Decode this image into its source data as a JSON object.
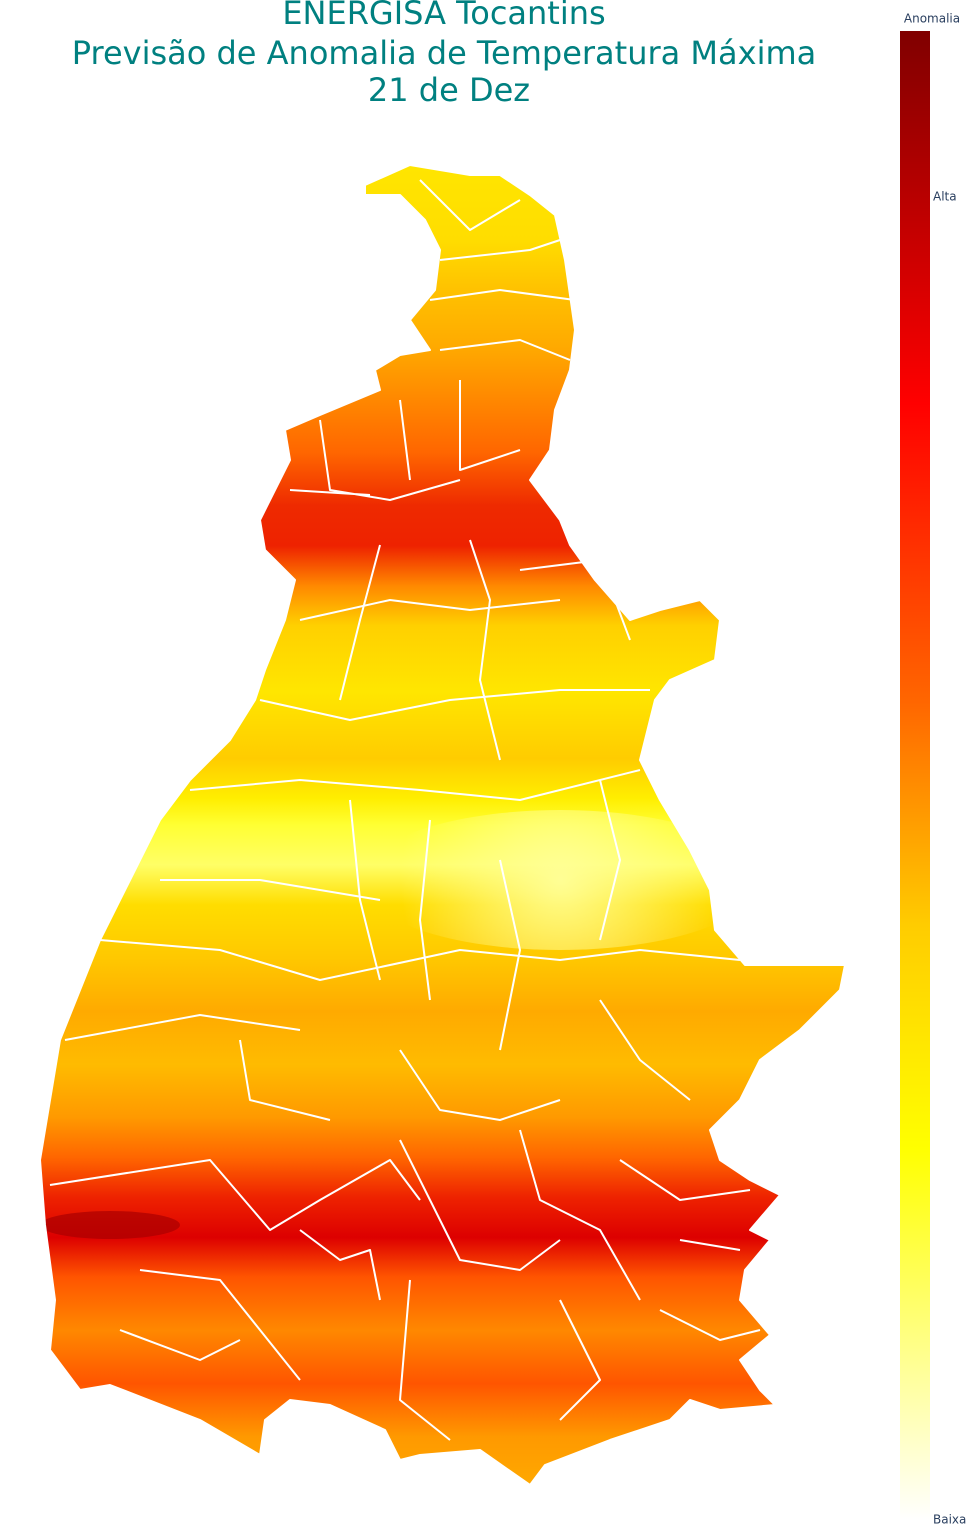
{
  "title": [
    "ENERGISA Tocantins",
    "Previsão de Anomalia de Temperatura Máxima",
    "21 de Dez"
  ],
  "colorbar": {
    "title": "Anomalia",
    "labels": [
      "Alta",
      "Baixa"
    ]
  }
}
